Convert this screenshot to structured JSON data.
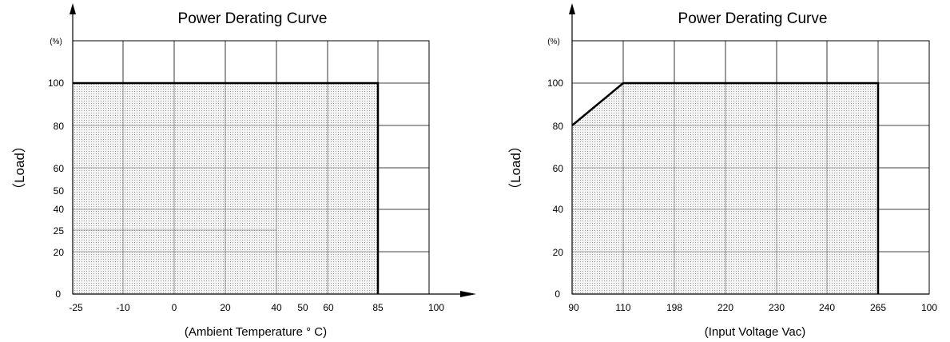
{
  "chart_data": [
    {
      "type": "area",
      "title": "Power Derating Curve",
      "ylabel": "（Load）",
      "yunit": "(%)",
      "xlabel": "(Ambient Temperature ° C)",
      "xticks": [
        "-25",
        "-10",
        "0",
        "20",
        "40",
        "50",
        "60",
        "85",
        "100"
      ],
      "yticks": [
        "0",
        "20",
        "25",
        "40",
        "50",
        "60",
        "80",
        "100"
      ],
      "series": [
        {
          "x": [
            "-25",
            "85",
            "85"
          ],
          "y": [
            100,
            100,
            0
          ]
        }
      ],
      "ylim": [
        0,
        120
      ],
      "grid": true,
      "shaded_region": "under curve"
    },
    {
      "type": "area",
      "title": "Power Derating Curve",
      "ylabel": "（Load）",
      "yunit": "(%)",
      "xlabel": "(Input Voltage Vac)",
      "xticks": [
        "90",
        "110",
        "198",
        "220",
        "230",
        "240",
        "265",
        "100"
      ],
      "yticks": [
        "0",
        "20",
        "40",
        "60",
        "80",
        "100"
      ],
      "series": [
        {
          "x": [
            "90",
            "110",
            "265",
            "265"
          ],
          "y": [
            80,
            100,
            100,
            0
          ]
        }
      ],
      "ylim": [
        0,
        120
      ],
      "grid": true,
      "shaded_region": "under curve"
    }
  ]
}
